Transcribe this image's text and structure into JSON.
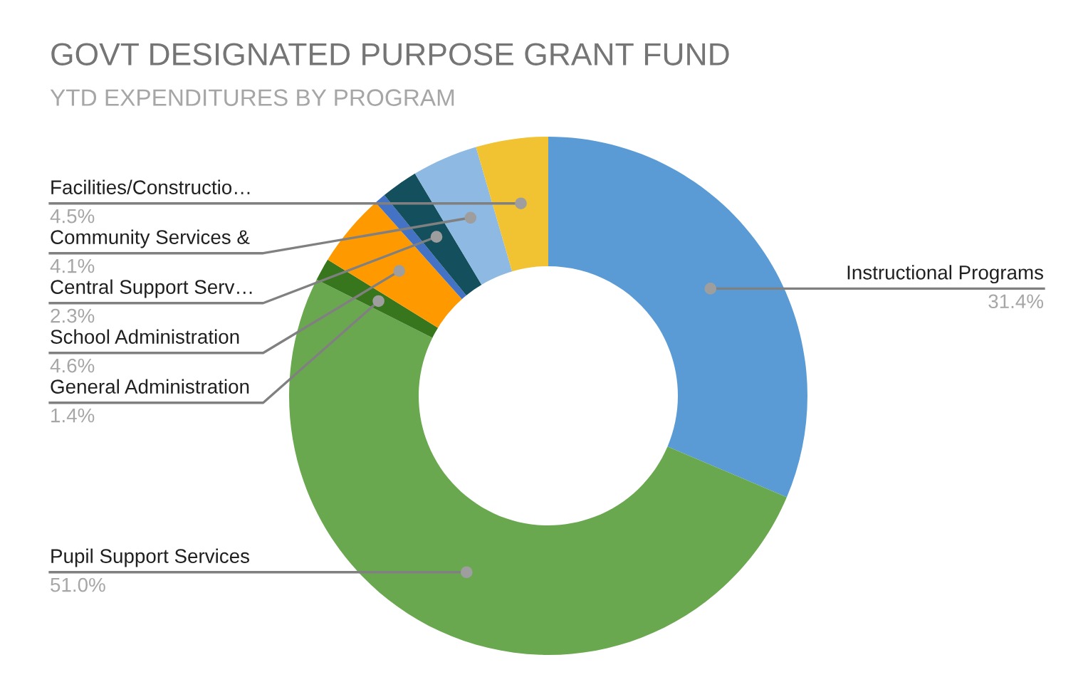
{
  "chart_data": {
    "type": "donut",
    "title": "GOVT DESIGNATED PURPOSE GRANT FUND",
    "subtitle": "YTD EXPENDITURES BY PROGRAM",
    "categories": [
      "Instructional Programs",
      "Pupil Support Services",
      "General Administration",
      "School Administration",
      null,
      "Central Support Serv…",
      "Community Services &",
      "Facilities/Constructio…"
    ],
    "values": [
      31.4,
      51.0,
      1.4,
      4.6,
      0.7,
      2.3,
      4.1,
      4.5
    ],
    "value_labels": [
      "31.4%",
      "51.0%",
      "1.4%",
      "4.6%",
      null,
      "2.3%",
      "4.1%",
      "4.5%"
    ],
    "colors": [
      "#5b9bd5",
      "#6aa84f",
      "#38761d",
      "#ff9900",
      "#4472c4",
      "#134f5c",
      "#8db9e3",
      "#f1c232"
    ],
    "legend": false
  }
}
